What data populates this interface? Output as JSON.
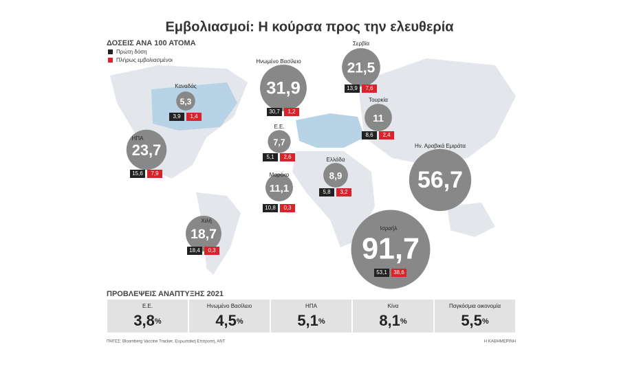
{
  "header": {
    "title": "Εμβολιασμοί: Η κούρσα προς την ελευθερία",
    "subtitle": "ΔΟΣΕΙΣ ΑΝΑ 100 ΑΤΟΜΑ"
  },
  "legend": {
    "first": "Πρώτη δόση",
    "full": "Πλήρως εμβολιασμένοι"
  },
  "countries": [
    {
      "name": "Καναδάς",
      "total": 5.3,
      "total_label": "5,3",
      "first": "3,9",
      "full": "1,4"
    },
    {
      "name": "ΗΠΑ",
      "total": 23.7,
      "total_label": "23,7",
      "first": "15,6",
      "full": "7,9"
    },
    {
      "name": "Ηνωμένο Βασίλειο",
      "total": 31.9,
      "total_label": "31,9",
      "first": "30,7",
      "full": "1,2"
    },
    {
      "name": "Ε.Ε.",
      "total": 7.7,
      "total_label": "7,7",
      "first": "5,1",
      "full": "2,6"
    },
    {
      "name": "Μαρόκο",
      "total": 11.1,
      "total_label": "11,1",
      "first": "10,8",
      "full": "0,3"
    },
    {
      "name": "Χιλή",
      "total": 18.7,
      "total_label": "18,7",
      "first": "18,4",
      "full": "0,3"
    },
    {
      "name": "Σερβία",
      "total": 21.5,
      "total_label": "21,5",
      "first": "13,9",
      "full": "7,6"
    },
    {
      "name": "Τουρκία",
      "total": 11,
      "total_label": "11",
      "first": "8,6",
      "full": "2,4"
    },
    {
      "name": "Ελλάδα",
      "total": 8.9,
      "total_label": "8,9",
      "first": "5,8",
      "full": "3,2"
    },
    {
      "name": "Ην. Αραβικά Εμιράτα",
      "total": 56.7,
      "total_label": "56,7"
    },
    {
      "name": "Ισραήλ",
      "total": 91.7,
      "total_label": "91,7",
      "first": "53,1",
      "full": "38,6"
    }
  ],
  "forecasts": {
    "title": "ΠΡΟΒΛΕΨΕΙΣ ΑΝΑΠΤΥΞΗΣ 2021",
    "unit": "%",
    "items": [
      {
        "name": "Ε.Ε.",
        "value": "3,8"
      },
      {
        "name": "Ηνωμένο Βασίλειο",
        "value": "4,5"
      },
      {
        "name": "ΗΠΑ",
        "value": "5,1"
      },
      {
        "name": "Κίνα",
        "value": "8,1"
      },
      {
        "name": "Παγκόσμια οικονομία",
        "value": "5,5"
      }
    ]
  },
  "footer": {
    "source": "ΠΗΓΕΣ: Bloomberg Vaccine Tracker, Ευρωπαϊκή Επιτροπή, ΑΝΤ",
    "brand": "Η ΚΑΘΗΜΕΡΙΝΗ"
  }
}
